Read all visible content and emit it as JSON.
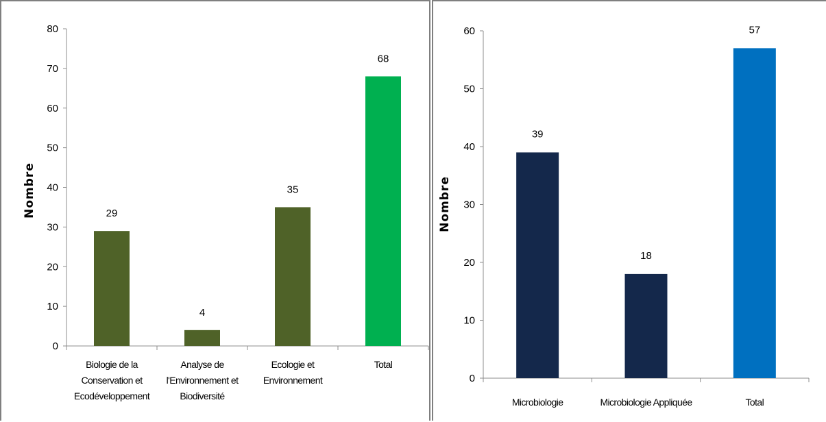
{
  "chart_data": [
    {
      "type": "bar",
      "categories": [
        [
          "Biologie de la",
          "Conservation et",
          "Ecodéveloppement"
        ],
        [
          "Analyse de",
          "l'Environnement et",
          "Biodiversité"
        ],
        [
          "Ecologie et",
          "Environnement"
        ],
        [
          "Total"
        ]
      ],
      "values": [
        29,
        4,
        35,
        68
      ],
      "colors": [
        "#4f6228",
        "#4f6228",
        "#4f6228",
        "#00b050"
      ],
      "ylabel": "Nombre",
      "ylim": [
        0,
        80
      ],
      "yticks": [
        0,
        10,
        20,
        30,
        40,
        50,
        60,
        70,
        80
      ],
      "grid": false
    },
    {
      "type": "bar",
      "categories": [
        [
          "Microbiologie"
        ],
        [
          "Microbiologie Appliquée"
        ],
        [
          "Total"
        ]
      ],
      "values": [
        39,
        18,
        57
      ],
      "colors": [
        "#14284b",
        "#14284b",
        "#0070c0"
      ],
      "ylabel": "Nombre",
      "ylim": [
        0,
        60
      ],
      "yticks": [
        0,
        10,
        20,
        30,
        40,
        50,
        60
      ],
      "grid": false
    }
  ]
}
